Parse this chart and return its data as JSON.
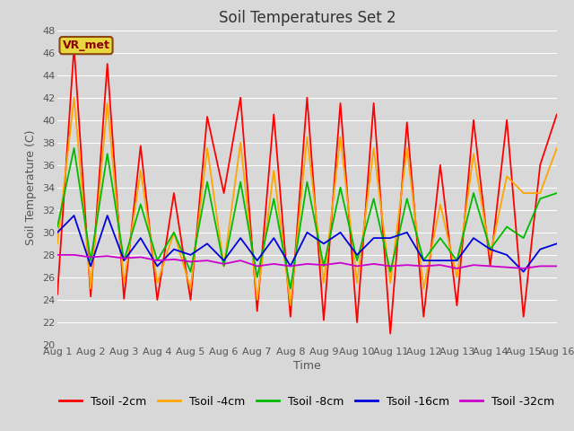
{
  "title": "Soil Temperatures Set 2",
  "xlabel": "Time",
  "ylabel": "Soil Temperature (C)",
  "ylim": [
    20,
    48
  ],
  "yticks": [
    20,
    22,
    24,
    26,
    28,
    30,
    32,
    34,
    36,
    38,
    40,
    42,
    44,
    46,
    48
  ],
  "x_labels": [
    "Aug 1",
    "Aug 2",
    "Aug 3",
    "Aug 4",
    "Aug 5",
    "Aug 6",
    "Aug 7",
    "Aug 8",
    "Aug 9",
    "Aug 10",
    "Aug 11",
    "Aug 12",
    "Aug 13",
    "Aug 14",
    "Aug 15",
    "Aug 16"
  ],
  "annotation_text": "VR_met",
  "series": {
    "Tsoil -2cm": {
      "color": "#ff0000",
      "data": [
        24.5,
        46.5,
        24.3,
        45.0,
        24.1,
        37.7,
        24.0,
        33.5,
        24.0,
        40.3,
        33.5,
        42.0,
        23.0,
        40.5,
        22.5,
        42.0,
        22.2,
        41.5,
        22.0,
        41.5,
        21.0,
        39.8,
        22.5,
        36.0,
        23.5,
        40.0,
        27.0,
        40.0,
        22.5,
        36.0,
        40.5
      ]
    },
    "Tsoil -4cm": {
      "color": "#ffa500",
      "data": [
        29.0,
        42.0,
        25.0,
        41.5,
        25.5,
        35.5,
        25.5,
        30.0,
        25.0,
        37.5,
        27.0,
        38.0,
        24.0,
        35.5,
        23.5,
        38.5,
        25.5,
        38.5,
        25.5,
        37.5,
        25.5,
        37.5,
        25.0,
        32.5,
        26.0,
        37.0,
        28.0,
        35.0,
        33.5,
        33.5,
        37.5
      ]
    },
    "Tsoil -8cm": {
      "color": "#00bb00",
      "data": [
        30.5,
        37.5,
        27.5,
        37.0,
        27.5,
        32.5,
        27.5,
        30.0,
        26.5,
        34.5,
        27.0,
        34.5,
        26.0,
        33.0,
        25.0,
        34.5,
        27.0,
        34.0,
        27.5,
        33.0,
        26.5,
        33.0,
        27.5,
        29.5,
        27.5,
        33.5,
        28.5,
        30.5,
        29.5,
        33.0,
        33.5
      ]
    },
    "Tsoil -16cm": {
      "color": "#0000dd",
      "data": [
        30.0,
        31.5,
        27.0,
        31.5,
        27.5,
        29.5,
        27.0,
        28.5,
        28.0,
        29.0,
        27.5,
        29.5,
        27.5,
        29.5,
        27.0,
        30.0,
        29.0,
        30.0,
        28.0,
        29.5,
        29.5,
        30.0,
        27.5,
        27.5,
        27.5,
        29.5,
        28.5,
        28.0,
        26.5,
        28.5,
        29.0
      ]
    },
    "Tsoil -32cm": {
      "color": "#cc00cc",
      "data": [
        28.0,
        28.0,
        27.8,
        27.9,
        27.7,
        27.8,
        27.5,
        27.6,
        27.4,
        27.5,
        27.2,
        27.5,
        27.0,
        27.2,
        27.0,
        27.2,
        27.1,
        27.3,
        27.0,
        27.2,
        27.0,
        27.1,
        27.0,
        27.1,
        26.8,
        27.1,
        27.0,
        26.9,
        26.8,
        27.0,
        27.0
      ]
    }
  },
  "background_color": "#d8d8d8",
  "plot_bg_color": "#d8d8d8",
  "title_fontsize": 12,
  "axis_fontsize": 9,
  "tick_fontsize": 8,
  "legend_fontsize": 9,
  "line_width": 1.3
}
